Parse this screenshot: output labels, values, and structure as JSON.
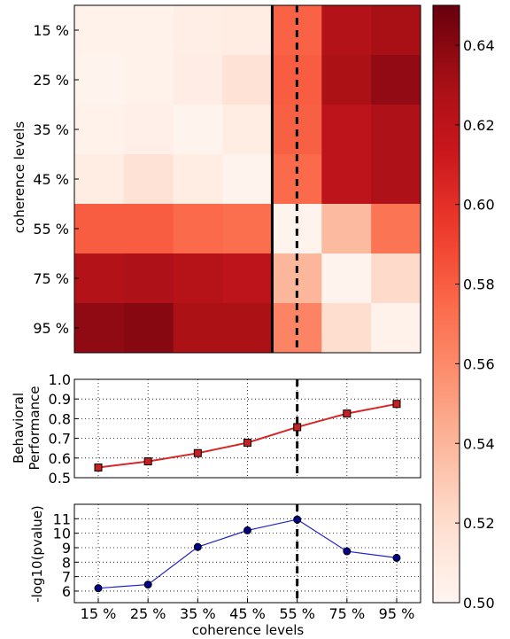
{
  "chart_data": [
    {
      "type": "heatmap",
      "ylabel": "coherence levels",
      "row_labels": [
        "15 %",
        "25 %",
        "35 %",
        "45 %",
        "55 %",
        "75 %",
        "95 %"
      ],
      "columns": 7,
      "values": [
        [
          0.503,
          0.503,
          0.506,
          0.508,
          0.578,
          0.625,
          0.63
        ],
        [
          0.502,
          0.503,
          0.507,
          0.517,
          0.58,
          0.628,
          0.637
        ],
        [
          0.503,
          0.505,
          0.502,
          0.508,
          0.579,
          0.62,
          0.627
        ],
        [
          0.508,
          0.517,
          0.508,
          0.502,
          0.575,
          0.62,
          0.627
        ],
        [
          0.58,
          0.58,
          0.575,
          0.573,
          0.502,
          0.538,
          0.57
        ],
        [
          0.625,
          0.627,
          0.623,
          0.62,
          0.54,
          0.502,
          0.522
        ],
        [
          0.638,
          0.64,
          0.628,
          0.628,
          0.563,
          0.52,
          0.503
        ]
      ],
      "solid_line_after_column": 4,
      "dashed_line_column": 4.5,
      "colorbar": {
        "ticks": [
          "0.50",
          "0.52",
          "0.54",
          "0.56",
          "0.58",
          "0.60",
          "0.62",
          "0.64"
        ],
        "range": [
          0.5,
          0.65
        ]
      }
    },
    {
      "type": "line",
      "ylabel_lines": [
        "Behavioral",
        "Performance"
      ],
      "y_ticks": [
        "0.5",
        "0.6",
        "0.7",
        "0.8",
        "0.9",
        "1.0"
      ],
      "ylim": [
        0.5,
        1.0
      ],
      "grid": true,
      "line_color": "#d62728",
      "marker_color": "#c62020",
      "values": [
        0.552,
        0.583,
        0.625,
        0.678,
        0.757,
        0.826,
        0.875
      ],
      "dashed_line_x": 4
    },
    {
      "type": "line",
      "ylabel": "-log10(pvalue)",
      "xlabel": "coherence levels",
      "categories": [
        "15 %",
        "25 %",
        "35 %",
        "45 %",
        "55 %",
        "75 %",
        "95 %"
      ],
      "y_ticks": [
        "6",
        "7",
        "8",
        "9",
        "10",
        "11"
      ],
      "ylim": [
        5.2,
        12.0
      ],
      "grid": true,
      "line_color": "#1f1fcc",
      "marker_color": "#00008b",
      "values": [
        6.2,
        6.45,
        9.05,
        10.2,
        10.95,
        8.75,
        8.3
      ],
      "dashed_line_x": 4
    }
  ]
}
